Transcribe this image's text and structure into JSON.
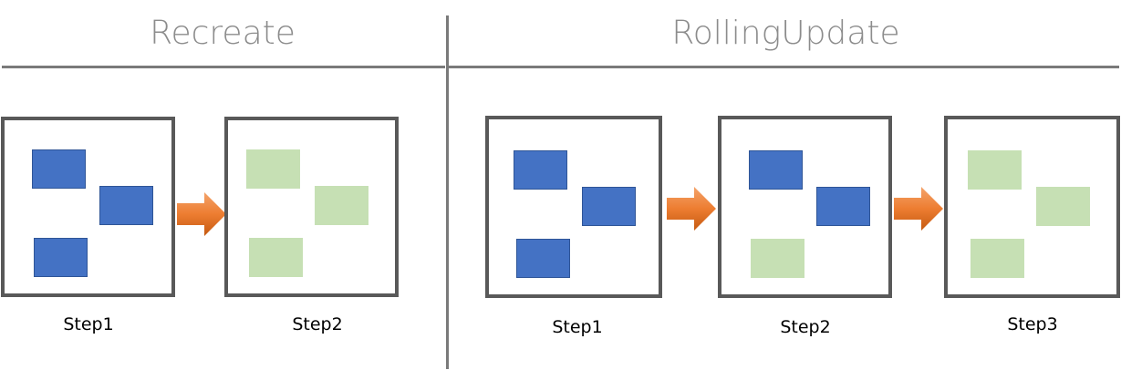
{
  "sections": {
    "recreate": {
      "title": "Recreate",
      "steps": [
        {
          "label": "Step1",
          "pods": [
            "old",
            "old",
            "old"
          ]
        },
        {
          "label": "Step2",
          "pods": [
            "new",
            "new",
            "new"
          ]
        }
      ]
    },
    "rolling": {
      "title": "RollingUpdate",
      "steps": [
        {
          "label": "Step1",
          "pods": [
            "old",
            "old",
            "old"
          ]
        },
        {
          "label": "Step2",
          "pods": [
            "old",
            "old",
            "new"
          ]
        },
        {
          "label": "Step3",
          "pods": [
            "new",
            "new",
            "new"
          ]
        }
      ]
    }
  },
  "colors": {
    "old_pod": "#4472c4",
    "new_pod": "#c6e0b4",
    "arrow": "#ed7d31",
    "divider": "#7a7a7a",
    "box_border": "#595959"
  }
}
